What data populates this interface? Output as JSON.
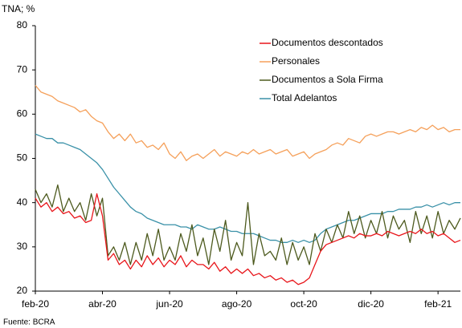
{
  "chart_data": {
    "type": "line",
    "y_label": "TNA; %",
    "source": "Fuente: BCRA",
    "categories": [
      "feb-20",
      null,
      null,
      null,
      null,
      null,
      null,
      null,
      null,
      null,
      null,
      null,
      "abr-20",
      null,
      null,
      null,
      null,
      null,
      null,
      null,
      null,
      null,
      null,
      null,
      "jun-20",
      null,
      null,
      null,
      null,
      null,
      null,
      null,
      null,
      null,
      null,
      null,
      "ago-20",
      null,
      null,
      null,
      null,
      null,
      null,
      null,
      null,
      null,
      null,
      null,
      "oct-20",
      null,
      null,
      null,
      null,
      null,
      null,
      null,
      null,
      null,
      null,
      null,
      "dic-20",
      null,
      null,
      null,
      null,
      null,
      null,
      null,
      null,
      null,
      null,
      null,
      "feb-21",
      null,
      null,
      null,
      null
    ],
    "ylim": [
      20,
      80
    ],
    "yticks": [
      20,
      30,
      40,
      50,
      60,
      70,
      80
    ],
    "grid": false,
    "legend": "upper right",
    "series": [
      {
        "name": "Documentos descontados",
        "color": "#e8161b",
        "values": [
          41,
          39,
          40,
          38,
          39,
          37.5,
          38,
          36.5,
          37,
          35.5,
          36,
          42,
          37,
          27,
          28.5,
          26,
          27,
          25,
          27,
          25.5,
          28,
          26,
          27.5,
          25.5,
          27,
          26,
          28,
          25.5,
          27,
          26,
          26,
          25,
          26.5,
          24.5,
          25.5,
          24,
          25,
          24,
          25,
          23.5,
          24,
          23,
          23.5,
          22.5,
          23,
          22,
          22.5,
          21.5,
          22,
          23,
          26,
          29,
          30.5,
          31,
          31.5,
          32,
          32.5,
          32,
          33,
          32.5,
          32.5,
          33,
          32.5,
          33.5,
          33,
          32.5,
          33,
          33.5,
          33,
          34,
          33,
          33.5,
          32.5,
          33,
          32,
          31,
          31.5
        ]
      },
      {
        "name": "Personales",
        "color": "#f5a05a",
        "values": [
          66.5,
          65,
          64.5,
          64,
          63,
          62.5,
          62,
          61.5,
          60.5,
          61,
          59.5,
          58.5,
          58,
          56,
          54.5,
          55.5,
          54,
          55.5,
          53.5,
          54,
          52.5,
          53,
          52,
          53.5,
          51,
          50,
          51.5,
          49.5,
          50.5,
          51,
          50,
          51,
          52,
          50.5,
          51.5,
          51,
          50.5,
          51.5,
          51,
          52,
          51,
          51.5,
          52,
          51,
          51.5,
          52,
          50.5,
          51,
          51.5,
          50,
          51,
          51.5,
          52,
          53,
          53.5,
          53,
          54.5,
          54,
          53.5,
          55,
          55.5,
          55,
          55.5,
          56,
          56,
          55.5,
          56,
          56.5,
          56,
          57,
          56.5,
          57.5,
          56.5,
          57,
          56,
          56.5,
          56.5
        ]
      },
      {
        "name": "Documentos a Sola Firma",
        "color": "#4d5a1e",
        "values": [
          43,
          40,
          42,
          39,
          44,
          38,
          41,
          38,
          40,
          36,
          42,
          37,
          41,
          28,
          30,
          27,
          31,
          26,
          31,
          27,
          33,
          28,
          34,
          27,
          30,
          27,
          33,
          29,
          35,
          28,
          32,
          26,
          34,
          29,
          36,
          27,
          31,
          28,
          40,
          26,
          33,
          28,
          29,
          27,
          32,
          26,
          31,
          27,
          30,
          26,
          33,
          29,
          34,
          31,
          35,
          32,
          38,
          33,
          37,
          32,
          36,
          33,
          38,
          32,
          37,
          34,
          36,
          31,
          38,
          33,
          37,
          32,
          38,
          33,
          36,
          34,
          36.5
        ]
      },
      {
        "name": "Total Adelantos",
        "color": "#3a91a8",
        "values": [
          55.5,
          55,
          54.5,
          54.5,
          53.5,
          53.5,
          53,
          52.5,
          52,
          51,
          50,
          49,
          47.5,
          45.5,
          43.5,
          42,
          40.5,
          39,
          38,
          37.5,
          36.5,
          36,
          35.5,
          35,
          35,
          35,
          34.5,
          34.5,
          34,
          35,
          34.5,
          34,
          34,
          34.5,
          34,
          33.5,
          33.5,
          33,
          33,
          33,
          32.5,
          32,
          31.5,
          31.5,
          31,
          31,
          31.5,
          31,
          31.5,
          31,
          31.5,
          33,
          34,
          34.5,
          35,
          35.5,
          36,
          36,
          36.5,
          37,
          37.5,
          37.5,
          37.5,
          38,
          38,
          38.5,
          38.5,
          38.5,
          39,
          39,
          39.5,
          39,
          39.5,
          40,
          39.5,
          40,
          40
        ]
      }
    ]
  }
}
